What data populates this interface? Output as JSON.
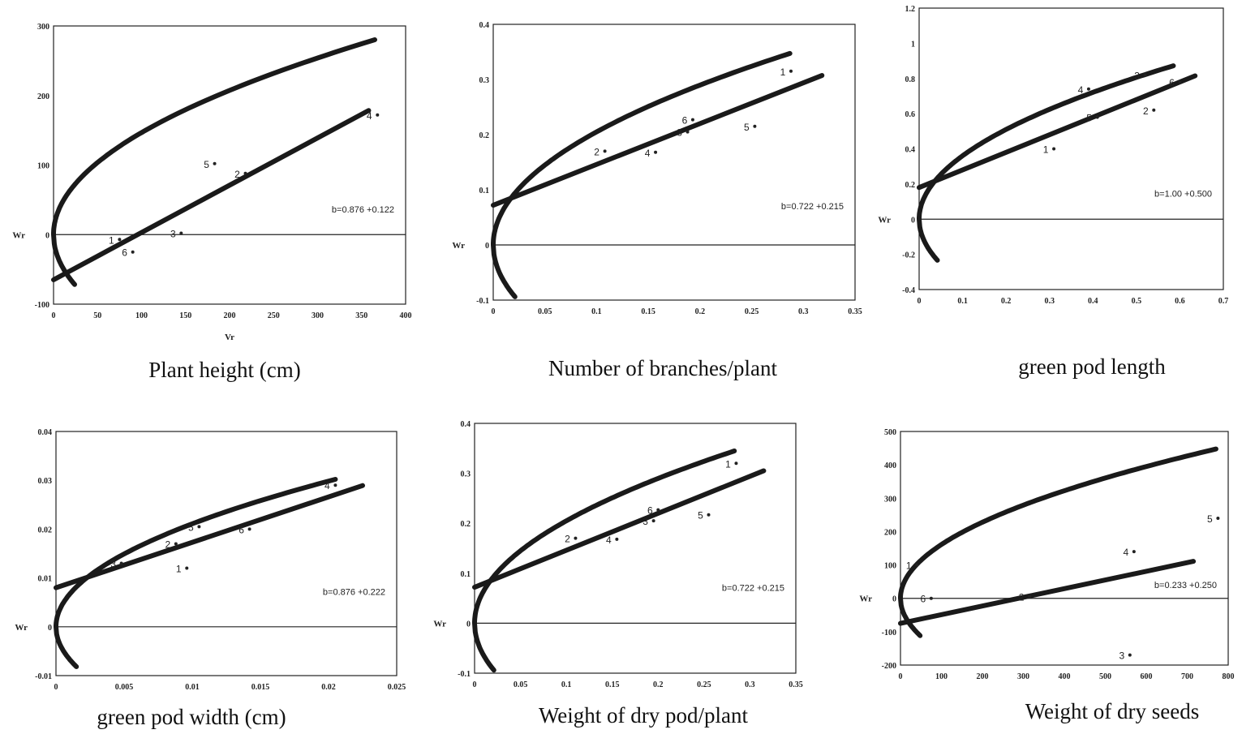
{
  "chart_data": [
    {
      "type": "scatter",
      "caption": "Plant height (cm)",
      "xlabel": "Vr",
      "ylabel": "Wr",
      "xlim": [
        0,
        400
      ],
      "ylim": [
        -100,
        300
      ],
      "xticks": [
        0,
        50,
        100,
        150,
        200,
        250,
        300,
        350,
        400
      ],
      "xtick_labels": [
        "0",
        "50",
        "100",
        "150",
        "200",
        "250",
        "300",
        "350",
        "400"
      ],
      "yticks": [
        -100,
        0,
        100,
        200,
        300
      ],
      "ytick_labels": [
        "-100",
        "0",
        "100",
        "200",
        "300"
      ],
      "points": [
        {
          "label": "1",
          "x": 75,
          "y": -7
        },
        {
          "label": "6",
          "x": 90,
          "y": -25
        },
        {
          "label": "3",
          "x": 145,
          "y": 2
        },
        {
          "label": "5",
          "x": 183,
          "y": 102
        },
        {
          "label": "2",
          "x": 218,
          "y": 88
        },
        {
          "label": "4",
          "x": 368,
          "y": 172
        }
      ],
      "regression": {
        "intercept": -65,
        "slope": 0.68,
        "x_end": 358
      },
      "limiting_parabola": {
        "c": 215,
        "x_end": 365
      },
      "equation": "b=0.876 +0.122"
    },
    {
      "type": "scatter",
      "caption": "Number of branches/plant",
      "xlabel": "",
      "ylabel": "Wr",
      "xlim": [
        0,
        0.35
      ],
      "ylim": [
        -0.1,
        0.4
      ],
      "xticks": [
        0,
        0.05,
        0.1,
        0.15,
        0.2,
        0.25,
        0.3,
        0.35
      ],
      "xtick_labels": [
        "0",
        "0.05",
        "0.1",
        "0.15",
        "0.2",
        "0.25",
        "0.3",
        "0.35"
      ],
      "yticks": [
        -0.1,
        0,
        0.1,
        0.2,
        0.3,
        0.4
      ],
      "ytick_labels": [
        "-0.1",
        "0",
        "0.1",
        "0.2",
        "0.3",
        "0.4"
      ],
      "points": [
        {
          "label": "2",
          "x": 0.108,
          "y": 0.17
        },
        {
          "label": "4",
          "x": 0.157,
          "y": 0.168
        },
        {
          "label": "6",
          "x": 0.193,
          "y": 0.227
        },
        {
          "label": "3",
          "x": 0.188,
          "y": 0.205
        },
        {
          "label": "5",
          "x": 0.253,
          "y": 0.215
        },
        {
          "label": "1",
          "x": 0.288,
          "y": 0.315
        }
      ],
      "regression": {
        "intercept": 0.072,
        "slope": 0.74,
        "x_end": 0.318
      },
      "limiting_parabola": {
        "c": 0.42,
        "x_end": 0.287
      },
      "equation": "b=0.722 +0.215"
    },
    {
      "type": "scatter",
      "caption": "green pod length",
      "xlabel": "",
      "ylabel": "Wr",
      "xlim": [
        0,
        0.7
      ],
      "ylim": [
        -0.4,
        1.2
      ],
      "xticks": [
        0,
        0.1,
        0.2,
        0.3,
        0.4,
        0.5,
        0.6,
        0.7
      ],
      "xtick_labels": [
        "0",
        "0.1",
        "0.2",
        "0.3",
        "0.4",
        "0.5",
        "0.6",
        "0.7"
      ],
      "yticks": [
        -0.4,
        -0.2,
        0,
        0.2,
        0.4,
        0.6,
        0.8,
        1,
        1.2
      ],
      "ytick_labels": [
        "-0.4",
        "-0.2",
        "0",
        "0.2",
        "0.4",
        "0.6",
        "0.8",
        "1",
        "1.2"
      ],
      "points": [
        {
          "label": "1",
          "x": 0.31,
          "y": 0.4
        },
        {
          "label": "4",
          "x": 0.39,
          "y": 0.74
        },
        {
          "label": "5",
          "x": 0.41,
          "y": 0.58
        },
        {
          "label": "3",
          "x": 0.52,
          "y": 0.82
        },
        {
          "label": "2",
          "x": 0.54,
          "y": 0.62
        },
        {
          "label": "6",
          "x": 0.6,
          "y": 0.78
        }
      ],
      "regression": {
        "intercept": 0.18,
        "slope": 1.0,
        "x_end": 0.635
      },
      "limiting_parabola": {
        "c": 1.3,
        "x_end": 0.585
      },
      "equation": "b=1.00 +0.500"
    },
    {
      "type": "scatter",
      "caption": "green pod width (cm)",
      "xlabel": "",
      "ylabel": "Wr",
      "xlim": [
        0,
        0.025
      ],
      "ylim": [
        -0.01,
        0.04
      ],
      "xticks": [
        0,
        0.005,
        0.01,
        0.015,
        0.02,
        0.025
      ],
      "xtick_labels": [
        "0",
        "0.005",
        "0.01",
        "0.015",
        "0.02",
        "0.025"
      ],
      "yticks": [
        -0.01,
        0,
        0.01,
        0.02,
        0.03,
        0.04
      ],
      "ytick_labels": [
        "-0.01",
        "0",
        "0.01",
        "0.02",
        "0.03",
        "0.04"
      ],
      "points": [
        {
          "label": "3",
          "x": 0.0048,
          "y": 0.013
        },
        {
          "label": "2",
          "x": 0.0088,
          "y": 0.017
        },
        {
          "label": "1",
          "x": 0.0096,
          "y": 0.012
        },
        {
          "label": "5",
          "x": 0.0105,
          "y": 0.0205
        },
        {
          "label": "6",
          "x": 0.0142,
          "y": 0.02
        },
        {
          "label": "4",
          "x": 0.0205,
          "y": 0.029
        }
      ],
      "regression": {
        "intercept": 0.008,
        "slope": 0.93,
        "x_end": 0.0225
      },
      "limiting_parabola": {
        "c": 0.0445,
        "x_end": 0.0205
      },
      "equation": "b=0.876 +0.222"
    },
    {
      "type": "scatter",
      "caption": "Weight of dry pod/plant",
      "xlabel": "",
      "ylabel": "Wr",
      "xlim": [
        0,
        0.35
      ],
      "ylim": [
        -0.1,
        0.4
      ],
      "xticks": [
        0,
        0.05,
        0.1,
        0.15,
        0.2,
        0.25,
        0.3,
        0.35
      ],
      "xtick_labels": [
        "0",
        "0.05",
        "0.1",
        "0.15",
        "0.2",
        "0.25",
        "0.3",
        "0.35"
      ],
      "yticks": [
        -0.1,
        0,
        0.1,
        0.2,
        0.3,
        0.4
      ],
      "ytick_labels": [
        "-0.1",
        "0",
        "0.1",
        "0.2",
        "0.3",
        "0.4"
      ],
      "points": [
        {
          "label": "2",
          "x": 0.11,
          "y": 0.17
        },
        {
          "label": "4",
          "x": 0.155,
          "y": 0.168
        },
        {
          "label": "6",
          "x": 0.2,
          "y": 0.227
        },
        {
          "label": "3",
          "x": 0.195,
          "y": 0.205
        },
        {
          "label": "5",
          "x": 0.255,
          "y": 0.217
        },
        {
          "label": "1",
          "x": 0.285,
          "y": 0.32
        }
      ],
      "regression": {
        "intercept": 0.072,
        "slope": 0.74,
        "x_end": 0.315
      },
      "limiting_parabola": {
        "c": 0.42,
        "x_end": 0.283
      },
      "equation": "b=0.722 +0.215"
    },
    {
      "type": "scatter",
      "caption": "Weight of dry seeds",
      "xlabel": "",
      "ylabel": "Wr",
      "xlim": [
        0,
        800
      ],
      "ylim": [
        -200,
        500
      ],
      "xticks": [
        0,
        100,
        200,
        300,
        400,
        500,
        600,
        700,
        800
      ],
      "xtick_labels": [
        "0",
        "100",
        "200",
        "300",
        "400",
        "500",
        "600",
        "700",
        "800"
      ],
      "yticks": [
        -200,
        -100,
        0,
        100,
        200,
        300,
        400,
        500
      ],
      "ytick_labels": [
        "-200",
        "-100",
        "0",
        "100",
        "200",
        "300",
        "400",
        "500"
      ],
      "points": [
        {
          "label": "6",
          "x": 75,
          "y": 0
        },
        {
          "label": "2",
          "x": 315,
          "y": 5
        },
        {
          "label": "4",
          "x": 570,
          "y": 140
        },
        {
          "label": "3",
          "x": 560,
          "y": -170
        },
        {
          "label": "5",
          "x": 775,
          "y": 240
        },
        {
          "label": "1",
          "x": 40,
          "y": 100
        }
      ],
      "regression": {
        "intercept": -75,
        "slope": 0.26,
        "x_end": 715
      },
      "limiting_parabola": {
        "c": 260,
        "x_end": 770
      },
      "equation": "b=0.233 +0.250"
    }
  ]
}
